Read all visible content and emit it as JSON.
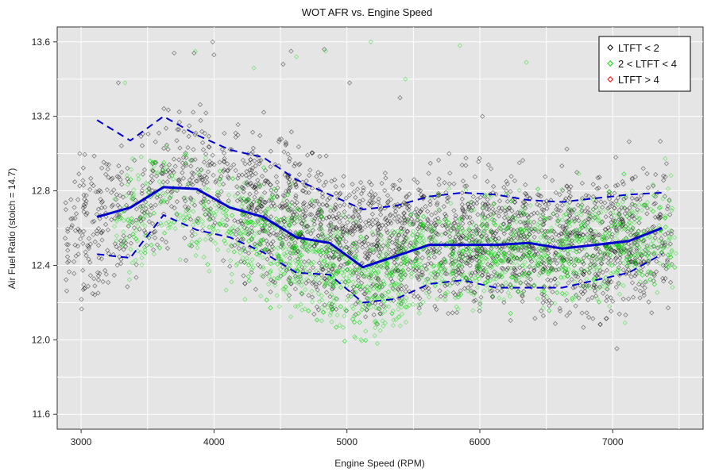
{
  "chart_data": {
    "type": "scatter",
    "title": "WOT AFR vs. Engine Speed",
    "xlabel": "Engine Speed (RPM)",
    "ylabel": "Air Fuel Ratio (stoich = 14.7)",
    "xlim": [
      2820,
      7680
    ],
    "ylim": [
      11.52,
      13.68
    ],
    "xticks": [
      3000,
      4000,
      5000,
      6000,
      7000
    ],
    "yticks": [
      11.6,
      12.0,
      12.4,
      12.8,
      13.2,
      13.6
    ],
    "grid": true,
    "background": "#e5e5e5",
    "legend_position": "top-right",
    "legend": [
      {
        "name": "LTFT < 2",
        "color": "#000000",
        "marker": "diamond-open"
      },
      {
        "name": "2 < LTFT < 4",
        "color": "#00dd00",
        "marker": "diamond-open"
      },
      {
        "name": "LTFT > 4",
        "color": "#ff0000",
        "marker": "diamond-open"
      }
    ],
    "scatter_series": [
      {
        "name": "LTFT < 2",
        "color": "#000000",
        "point_count": 3200,
        "point_cloud": {
          "x_range": [
            2880,
            7450
          ],
          "center_curve": [
            [
              2900,
              12.56
            ],
            [
              3100,
              12.6
            ],
            [
              3400,
              12.72
            ],
            [
              3650,
              12.88
            ],
            [
              3900,
              12.86
            ],
            [
              4200,
              12.74
            ],
            [
              4500,
              12.66
            ],
            [
              4800,
              12.58
            ],
            [
              5100,
              12.52
            ],
            [
              5400,
              12.54
            ],
            [
              5700,
              12.56
            ],
            [
              6000,
              12.55
            ],
            [
              6500,
              12.5
            ],
            [
              7000,
              12.52
            ],
            [
              7400,
              12.58
            ]
          ],
          "spread": 0.18,
          "outliers": [
            [
              2990,
              13.0
            ],
            [
              3280,
              13.38
            ],
            [
              3700,
              13.54
            ],
            [
              3850,
              13.54
            ],
            [
              3990,
              13.6
            ],
            [
              4000,
              13.53
            ],
            [
              4520,
              13.48
            ],
            [
              4580,
              13.55
            ],
            [
              4830,
              13.56
            ],
            [
              5020,
              13.38
            ],
            [
              5400,
              13.3
            ],
            [
              6020,
              13.2
            ],
            [
              7230,
              12.92
            ]
          ]
        }
      },
      {
        "name": "2 < LTFT < 4",
        "color": "#00dd00",
        "point_count": 2000,
        "point_cloud": {
          "x_range": [
            3250,
            7480
          ],
          "center_curve": [
            [
              3300,
              12.62
            ],
            [
              3650,
              12.76
            ],
            [
              3900,
              12.7
            ],
            [
              4200,
              12.56
            ],
            [
              4500,
              12.48
            ],
            [
              4800,
              12.42
            ],
            [
              5100,
              12.3
            ],
            [
              5300,
              12.34
            ],
            [
              5600,
              12.46
            ],
            [
              6000,
              12.48
            ],
            [
              6500,
              12.46
            ],
            [
              7000,
              12.52
            ],
            [
              7450,
              12.6
            ]
          ],
          "spread": 0.14,
          "outliers": [
            [
              3330,
              13.38
            ],
            [
              3860,
              13.55
            ],
            [
              4300,
              13.46
            ],
            [
              4620,
              13.52
            ],
            [
              4840,
              13.55
            ],
            [
              5180,
              13.6
            ],
            [
              5440,
              13.4
            ],
            [
              5850,
              13.58
            ],
            [
              6350,
              13.49
            ],
            [
              5250,
              12.05
            ]
          ]
        }
      },
      {
        "name": "LTFT > 4",
        "color": "#ff0000",
        "point_count": 0,
        "point_cloud": null
      }
    ],
    "line_series": [
      {
        "name": "median",
        "color": "#0000cc",
        "style": "solid",
        "x": [
          3120,
          3370,
          3620,
          3870,
          4120,
          4370,
          4620,
          4870,
          5120,
          5370,
          5620,
          5870,
          6120,
          6370,
          6620,
          6870,
          7120,
          7370
        ],
        "y": [
          12.66,
          12.71,
          12.82,
          12.81,
          12.71,
          12.66,
          12.55,
          12.52,
          12.39,
          12.45,
          12.51,
          12.51,
          12.51,
          12.52,
          12.49,
          12.51,
          12.53,
          12.6
        ]
      },
      {
        "name": "upper",
        "color": "#0000cc",
        "style": "dashed",
        "x": [
          3120,
          3370,
          3620,
          3870,
          4120,
          4370,
          4620,
          4870,
          5120,
          5370,
          5620,
          5870,
          6120,
          6370,
          6620,
          6870,
          7120,
          7370
        ],
        "y": [
          13.18,
          13.07,
          13.2,
          13.1,
          13.02,
          12.98,
          12.86,
          12.78,
          12.7,
          12.72,
          12.77,
          12.79,
          12.78,
          12.75,
          12.74,
          12.76,
          12.78,
          12.79
        ]
      },
      {
        "name": "lower",
        "color": "#0000cc",
        "style": "dashed",
        "x": [
          3120,
          3370,
          3620,
          3870,
          4120,
          4370,
          4620,
          4870,
          5120,
          5370,
          5620,
          5870,
          6120,
          6370,
          6620,
          6870,
          7120,
          7370
        ],
        "y": [
          12.46,
          12.44,
          12.67,
          12.59,
          12.55,
          12.47,
          12.36,
          12.35,
          12.2,
          12.22,
          12.3,
          12.32,
          12.28,
          12.28,
          12.28,
          12.32,
          12.36,
          12.46
        ]
      }
    ]
  }
}
